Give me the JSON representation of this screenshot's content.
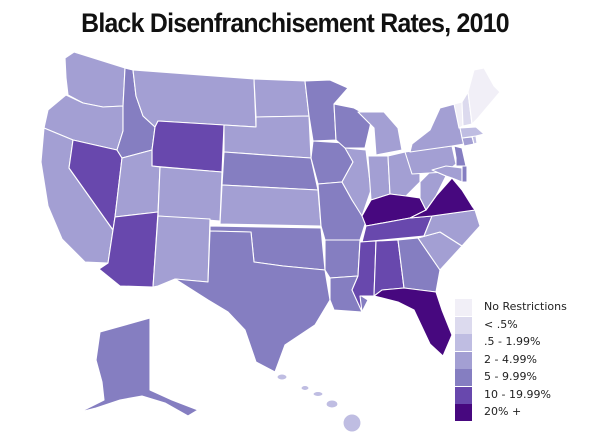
{
  "title": "Black Disenfranchisement Rates, 2010",
  "legend": [
    {
      "label": "No Restrictions",
      "color": "#f1eff7"
    },
    {
      "label": "< .5%",
      "color": "#dcdaee"
    },
    {
      "label": ".5 - 1.99%",
      "color": "#bfbde2"
    },
    {
      "label": "2 - 4.99%",
      "color": "#a39fd3"
    },
    {
      "label": "5 - 9.99%",
      "color": "#857ec1"
    },
    {
      "label": "10 - 19.99%",
      "color": "#6848ad"
    },
    {
      "label": "20% +",
      "color": "#47087f"
    }
  ],
  "states": {
    "WA": 3,
    "OR": 3,
    "CA": 3,
    "NV": 5,
    "ID": 4,
    "MT": 3,
    "WY": 5,
    "UT": 3,
    "AZ": 5,
    "CO": 3,
    "NM": 3,
    "ND": 3,
    "SD": 3,
    "NE": 4,
    "KS": 3,
    "OK": 4,
    "TX": 4,
    "MN": 4,
    "IA": 4,
    "MO": 4,
    "AR": 4,
    "LA": 4,
    "WI": 4,
    "IL": 3,
    "MI": 3,
    "IN": 3,
    "OH": 3,
    "KY": 6,
    "TN": 5,
    "MS": 5,
    "AL": 5,
    "GA": 4,
    "FL": 6,
    "SC": 3,
    "NC": 3,
    "VA": 6,
    "WV": 3,
    "PA": 3,
    "NY": 3,
    "NJ": 4,
    "DE": 4,
    "MD": 3,
    "CT": 3,
    "RI": 2,
    "MA": 2,
    "VT": 0,
    "NH": 1,
    "ME": 0,
    "AK": 4,
    "HI": 2
  }
}
